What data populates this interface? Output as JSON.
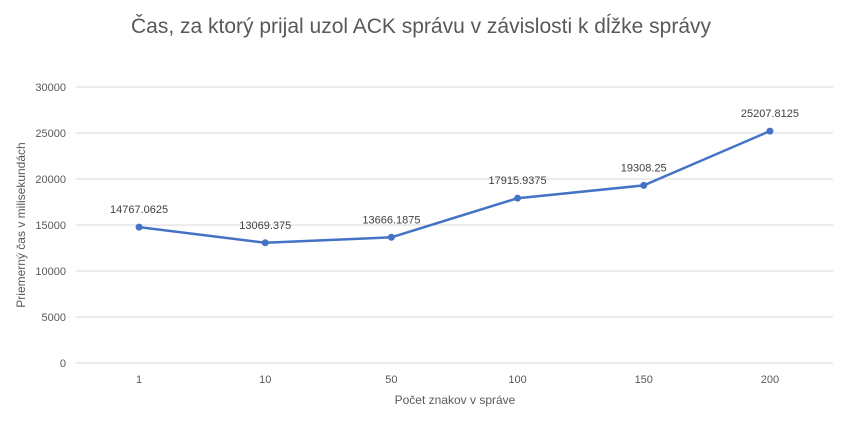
{
  "chart_data": {
    "type": "line",
    "title": "Čas, za ktorý prijal uzol ACK správu v závislosti k dĺžke správy",
    "xlabel": "Počet znakov v správe",
    "ylabel": "Priemerný čas v milisekundách",
    "categories": [
      "1",
      "10",
      "50",
      "100",
      "150",
      "200"
    ],
    "series": [
      {
        "values": [
          14767.0625,
          13069.375,
          13666.1875,
          17915.9375,
          19308.25,
          25207.8125
        ],
        "labels": [
          "14767.0625",
          "13069.375",
          "13666.1875",
          "17915.9375",
          "19308.25",
          "25207.8125"
        ]
      }
    ],
    "ylim": [
      0,
      30000
    ],
    "yticks": [
      "0",
      "5000",
      "10000",
      "15000",
      "20000",
      "25000",
      "30000"
    ],
    "grid": true,
    "legend": "none",
    "colors": {
      "line": "#4472c4"
    }
  }
}
